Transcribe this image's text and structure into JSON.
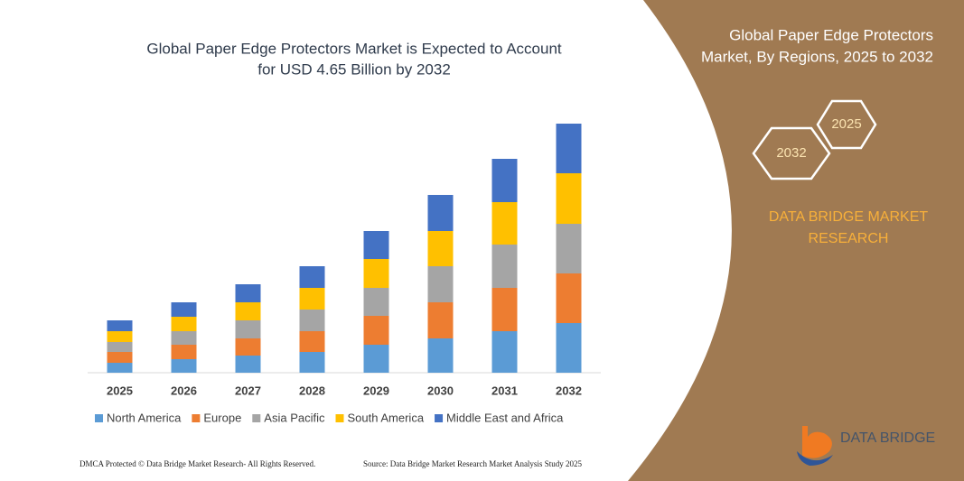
{
  "chart_data": {
    "type": "bar",
    "stacked": true,
    "title": [
      "Global Paper Edge Protectors Market is Expected to Account",
      "for USD 4.65 Billion by 2032"
    ],
    "categories": [
      "2025",
      "2026",
      "2027",
      "2028",
      "2029",
      "2030",
      "2031",
      "2032"
    ],
    "series": [
      {
        "name": "North America",
        "color": "#5b9bd5",
        "values": [
          11,
          15,
          19,
          23,
          31,
          38,
          46,
          55
        ]
      },
      {
        "name": "Europe",
        "color": "#ed7d31",
        "values": [
          12,
          16,
          19,
          23,
          32,
          40,
          48,
          55
        ]
      },
      {
        "name": "Asia Pacific",
        "color": "#a5a5a5",
        "values": [
          11,
          15,
          20,
          24,
          31,
          40,
          48,
          55
        ]
      },
      {
        "name": "South America",
        "color": "#ffc000",
        "values": [
          12,
          16,
          20,
          24,
          32,
          39,
          47,
          56
        ]
      },
      {
        "name": "Middle East and Africa",
        "color": "#4472c4",
        "values": [
          12,
          16,
          20,
          24,
          31,
          40,
          48,
          55
        ]
      }
    ]
  },
  "panel": {
    "title": [
      "Global Paper Edge Protectors",
      "Market, By Regions, 2025 to 2032"
    ],
    "hexagons": [
      "2025",
      "2032"
    ],
    "brand": [
      "DATA BRIDGE MARKET",
      "RESEARCH"
    ]
  },
  "logo": {
    "text": "DATA BRIDGE"
  },
  "footer": {
    "left": "DMCA Protected © Data Bridge Market Research- All Rights Reserved.",
    "right": "Source: Data Bridge Market Research  Market Analysis Study 2025"
  }
}
